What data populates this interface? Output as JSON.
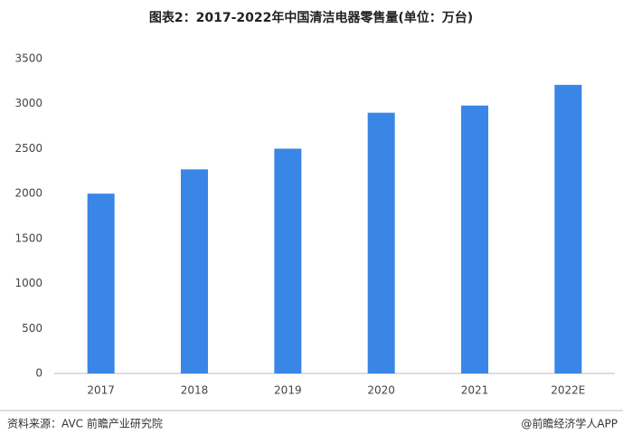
{
  "chart_data": {
    "type": "bar",
    "title": "图表2：2017-2022年中国清洁电器零售量(单位：万台)",
    "categories": [
      "2017",
      "2018",
      "2019",
      "2020",
      "2021",
      "2022E"
    ],
    "values": [
      2000,
      2270,
      2500,
      2900,
      2980,
      3210
    ],
    "color": "#3a86e6",
    "ylim": [
      0,
      3500
    ],
    "yticks": [
      0,
      500,
      1000,
      1500,
      2000,
      2500,
      3000,
      3500
    ],
    "grid": false,
    "source": "资料来源：AVC 前瞻产业研究院",
    "credit": "@前瞻经济学人APP"
  }
}
